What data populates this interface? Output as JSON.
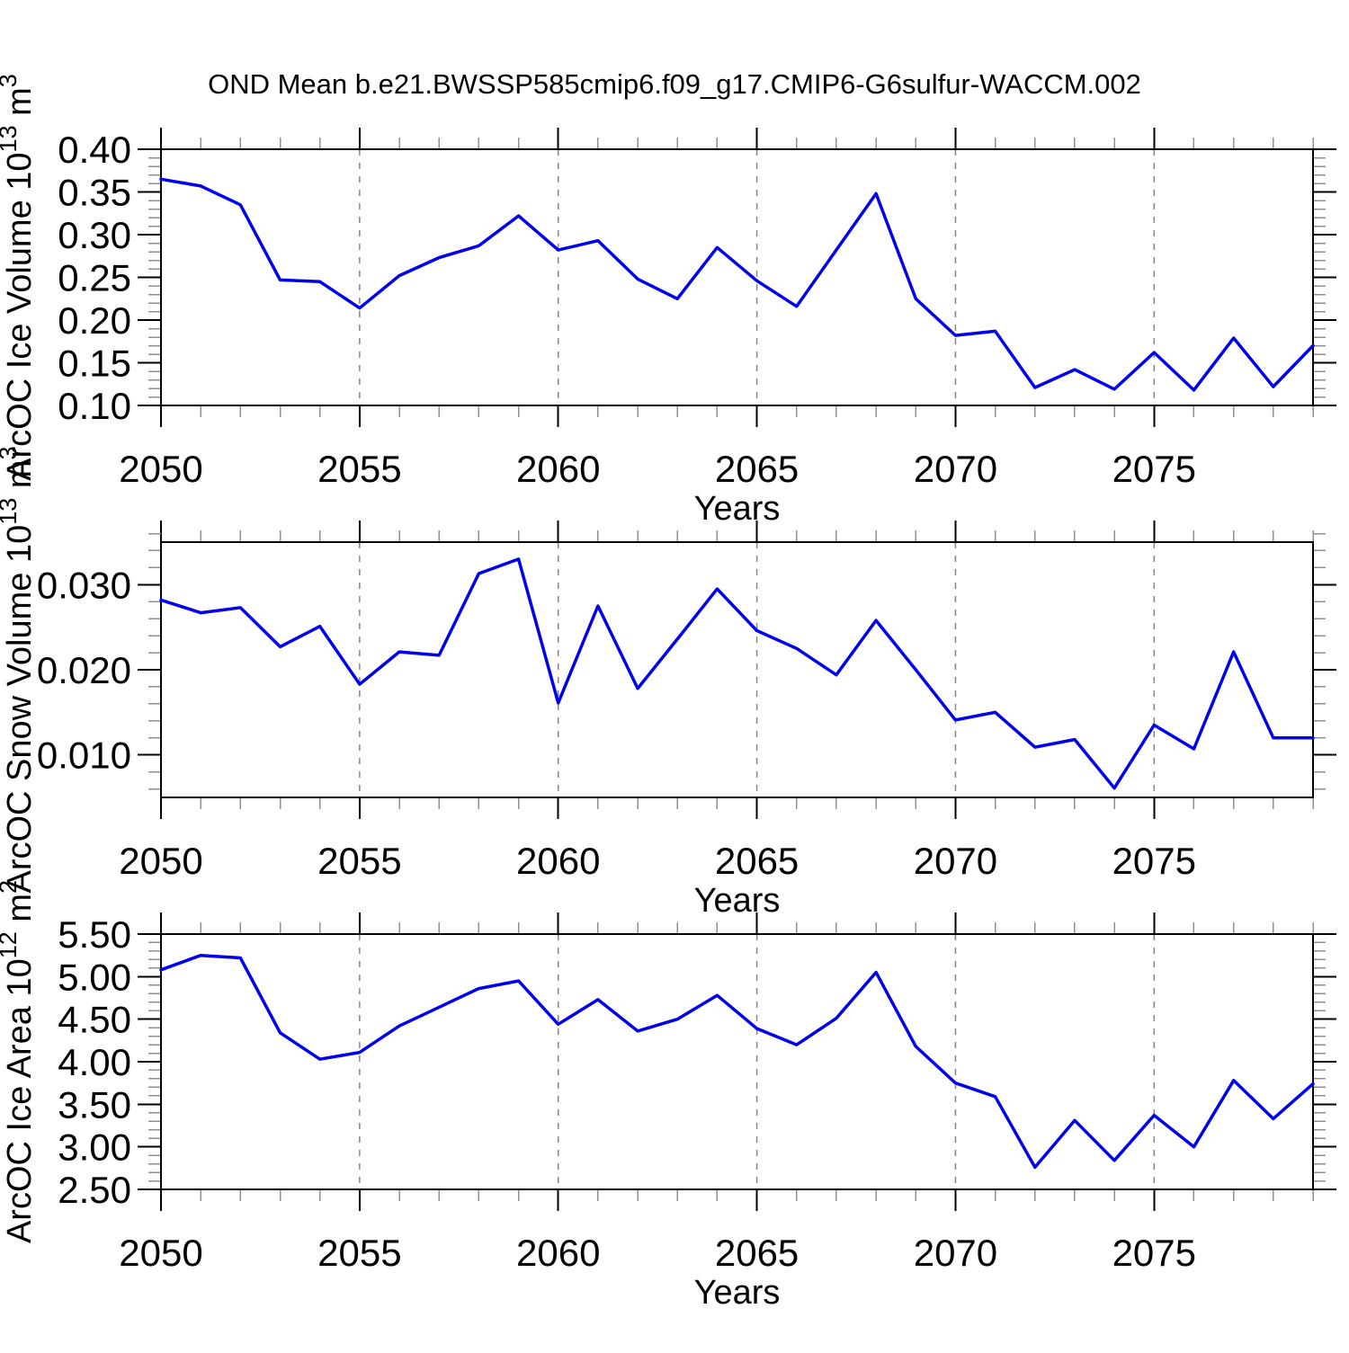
{
  "title": "OND Mean b.e21.BWSSP585cmip6.f09_g17.CMIP6-G6sulfur-WACCM.002",
  "colors": {
    "line": "#0000EE",
    "axis": "#000000",
    "grid": "#858585",
    "minor_tick": "#909090",
    "background": "#FFFFFF"
  },
  "chart_data": [
    {
      "type": "line",
      "name": "arcoc-ice-volume",
      "ylabel": {
        "label": "ArcOC Ice Volume",
        "magnitude": "10",
        "magnitude_exp": "13",
        "unit": "m",
        "unit_exp": "3"
      },
      "xlabel": "Years",
      "x": [
        2050,
        2051,
        2052,
        2053,
        2054,
        2055,
        2056,
        2057,
        2058,
        2059,
        2060,
        2061,
        2062,
        2063,
        2064,
        2065,
        2066,
        2067,
        2068,
        2069,
        2070,
        2071,
        2072,
        2073,
        2074,
        2075,
        2076,
        2077,
        2078,
        2079
      ],
      "values": [
        0.365,
        0.357,
        0.335,
        0.247,
        0.245,
        0.214,
        0.252,
        0.273,
        0.287,
        0.322,
        0.282,
        0.293,
        0.248,
        0.225,
        0.285,
        0.246,
        0.216,
        0.282,
        0.348,
        0.225,
        0.182,
        0.187,
        0.121,
        0.142,
        0.119,
        0.162,
        0.118,
        0.179,
        0.122,
        0.17
      ],
      "xlim": [
        2050,
        2079
      ],
      "ylim": [
        0.1,
        0.4
      ],
      "yticks": [
        0.4,
        0.35,
        0.3,
        0.25,
        0.2,
        0.15,
        0.1
      ],
      "ytick_decimals": 2,
      "y_minor_step": 0.01,
      "xticks": [
        2050,
        2055,
        2060,
        2065,
        2070,
        2075
      ],
      "x_minor_step": 1,
      "gridlines_x": [
        2055,
        2060,
        2065,
        2070,
        2075
      ],
      "grid": "vertical-dashed",
      "legend": "none"
    },
    {
      "type": "line",
      "name": "arcoc-snow-volume",
      "ylabel": {
        "label": "ArcOC Snow Volume",
        "magnitude": "10",
        "magnitude_exp": "13",
        "unit": "m",
        "unit_exp": "3"
      },
      "xlabel": "Years",
      "x": [
        2050,
        2051,
        2052,
        2053,
        2054,
        2055,
        2056,
        2057,
        2058,
        2059,
        2060,
        2061,
        2062,
        2063,
        2064,
        2065,
        2066,
        2067,
        2068,
        2069,
        2070,
        2071,
        2072,
        2073,
        2074,
        2075,
        2076,
        2077,
        2078,
        2079
      ],
      "values": [
        0.0282,
        0.0267,
        0.0273,
        0.0227,
        0.0251,
        0.0183,
        0.0221,
        0.0217,
        0.0313,
        0.033,
        0.0161,
        0.0275,
        0.0178,
        0.0236,
        0.0295,
        0.0246,
        0.0225,
        0.0194,
        0.0258,
        0.02,
        0.0141,
        0.015,
        0.0109,
        0.0118,
        0.0061,
        0.0135,
        0.0107,
        0.0221,
        0.012,
        0.012
      ],
      "xlim": [
        2050,
        2079
      ],
      "ylim": [
        0.005,
        0.035
      ],
      "yticks": [
        0.03,
        0.02,
        0.01
      ],
      "ytick_decimals": 3,
      "y_minor_step": 0.002,
      "xticks": [
        2050,
        2055,
        2060,
        2065,
        2070,
        2075
      ],
      "x_minor_step": 1,
      "gridlines_x": [
        2055,
        2060,
        2065,
        2070,
        2075
      ],
      "grid": "vertical-dashed",
      "legend": "none"
    },
    {
      "type": "line",
      "name": "arcoc-ice-area",
      "ylabel": {
        "label": "ArcOC Ice Area",
        "magnitude": "10",
        "magnitude_exp": "12",
        "unit": "m",
        "unit_exp": "2"
      },
      "xlabel": "Years",
      "x": [
        2050,
        2051,
        2052,
        2053,
        2054,
        2055,
        2056,
        2057,
        2058,
        2059,
        2060,
        2061,
        2062,
        2063,
        2064,
        2065,
        2066,
        2067,
        2068,
        2069,
        2070,
        2071,
        2072,
        2073,
        2074,
        2075,
        2076,
        2077,
        2078,
        2079
      ],
      "values": [
        5.08,
        5.25,
        5.22,
        4.34,
        4.03,
        4.11,
        4.42,
        4.64,
        4.86,
        4.95,
        4.44,
        4.73,
        4.36,
        4.5,
        4.78,
        4.39,
        4.2,
        4.51,
        5.05,
        4.18,
        3.75,
        3.59,
        2.76,
        3.31,
        2.84,
        3.37,
        3.0,
        3.78,
        3.33,
        3.74
      ],
      "xlim": [
        2050,
        2079
      ],
      "ylim": [
        2.5,
        5.5
      ],
      "yticks": [
        5.5,
        5.0,
        4.5,
        4.0,
        3.5,
        3.0,
        2.5
      ],
      "ytick_decimals": 2,
      "y_minor_step": 0.1,
      "xticks": [
        2050,
        2055,
        2060,
        2065,
        2070,
        2075
      ],
      "x_minor_step": 1,
      "gridlines_x": [
        2055,
        2060,
        2065,
        2070,
        2075
      ],
      "grid": "vertical-dashed",
      "legend": "none"
    }
  ]
}
